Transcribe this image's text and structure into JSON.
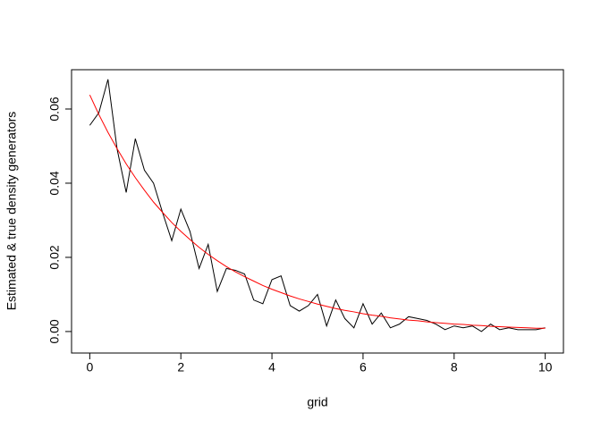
{
  "chart_data": {
    "type": "line",
    "xlabel": "grid",
    "ylabel": "Estimated & true density generators",
    "x": [
      0,
      0.2,
      0.4,
      0.6,
      0.8,
      1,
      1.2,
      1.4,
      1.6,
      1.8,
      2,
      2.2,
      2.4,
      2.6,
      2.8,
      3,
      3.2,
      3.4,
      3.6,
      3.8,
      4,
      4.2,
      4.4,
      4.6,
      4.8,
      5,
      5.2,
      5.4,
      5.6,
      5.8,
      6,
      6.2,
      6.4,
      6.6,
      6.8,
      7,
      7.2,
      7.4,
      7.6,
      7.8,
      8,
      8.2,
      8.4,
      8.6,
      8.8,
      9,
      9.2,
      9.4,
      9.6,
      9.8,
      10
    ],
    "series": [
      {
        "color": "#000000",
        "values": [
          0.0556,
          0.059,
          0.068,
          0.0492,
          0.0375,
          0.052,
          0.0435,
          0.04,
          0.032,
          0.0245,
          0.033,
          0.027,
          0.017,
          0.0235,
          0.0108,
          0.017,
          0.0165,
          0.0155,
          0.0085,
          0.0075,
          0.014,
          0.015,
          0.007,
          0.0055,
          0.007,
          0.01,
          0.0015,
          0.0085,
          0.0035,
          0.001,
          0.0075,
          0.002,
          0.005,
          0.001,
          0.002,
          0.004,
          0.0035,
          0.003,
          0.002,
          0.0005,
          0.0015,
          0.001,
          0.0015,
          0,
          0.002,
          0.0005,
          0.001,
          0.0005,
          0.0005,
          0.0005,
          0.001
        ]
      },
      {
        "color": "#ff0000",
        "values": [
          0.0638,
          0.0585,
          0.0537,
          0.0493,
          0.0452,
          0.0415,
          0.0381,
          0.0349,
          0.0321,
          0.0294,
          0.027,
          0.0248,
          0.0227,
          0.0208,
          0.0191,
          0.0175,
          0.0161,
          0.0148,
          0.0136,
          0.0124,
          0.0114,
          0.0105,
          0.0096,
          0.0088,
          0.0081,
          0.0074,
          0.0068,
          0.0062,
          0.0057,
          0.0053,
          0.0048,
          0.0044,
          0.0041,
          0.0037,
          0.0034,
          0.0031,
          0.0029,
          0.0026,
          0.0024,
          0.0022,
          0.002,
          0.0019,
          0.0017,
          0.0016,
          0.0014,
          0.0013,
          0.0012,
          0.0011,
          0.001,
          0.0009,
          0.0009
        ]
      }
    ],
    "xlim": [
      -0.4,
      10.4
    ],
    "ylim": [
      -0.0058,
      0.0706
    ],
    "xticks": [
      0,
      2,
      4,
      6,
      8,
      10
    ],
    "yticks": [
      {
        "value": 0,
        "label": "0.00"
      },
      {
        "value": 0.02,
        "label": "0.02"
      },
      {
        "value": 0.04,
        "label": "0.04"
      },
      {
        "value": 0.06,
        "label": "0.06"
      }
    ]
  }
}
